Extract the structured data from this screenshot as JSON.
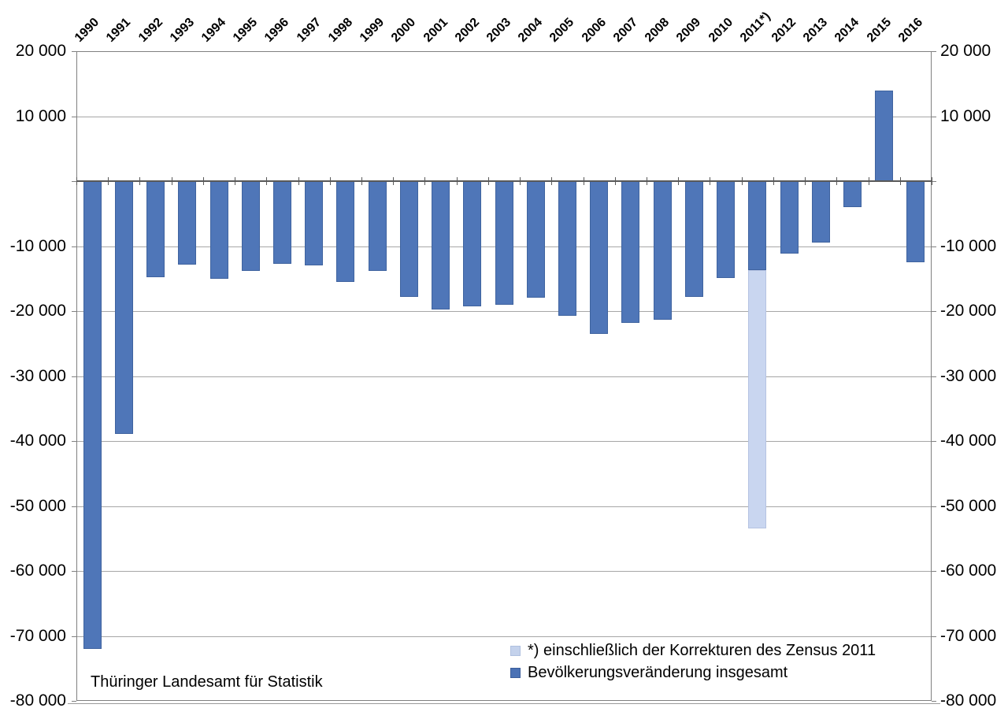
{
  "chart_data": {
    "type": "bar",
    "title": "",
    "categories": [
      "1990",
      "1991",
      "1992",
      "1993",
      "1994",
      "1995",
      "1996",
      "1997",
      "1998",
      "1999",
      "2000",
      "2001",
      "2002",
      "2003",
      "2004",
      "2005",
      "2006",
      "2007",
      "2008",
      "2009",
      "2010",
      "2011",
      "2012",
      "2013",
      "2014",
      "2015",
      "2016"
    ],
    "x_tick_labels": [
      "1990",
      "1991",
      "1992",
      "1993",
      "1994",
      "1995",
      "1996",
      "1997",
      "1998",
      "1999",
      "2000",
      "2001",
      "2002",
      "2003",
      "2004",
      "2005",
      "2006",
      "2007",
      "2008",
      "2009",
      "2010",
      "2011*)",
      "2012",
      "2013",
      "2014",
      "2015",
      "2016"
    ],
    "series": [
      {
        "name": "Bevölkerungsveränderung insgesamt",
        "color": "#4F76B8",
        "border_color": "#3F639F",
        "values": [
          -72000,
          -38900,
          -14800,
          -12900,
          -15000,
          -13800,
          -12700,
          -13000,
          -15500,
          -13800,
          -17800,
          -19700,
          -19300,
          -19000,
          -17900,
          -20700,
          -23500,
          -21800,
          -21300,
          -17800,
          -14900,
          -53400,
          -11100,
          -9500,
          -4000,
          14000,
          -12500
        ]
      }
    ],
    "census_segment": {
      "year": "2011",
      "note": "*) einschließlich der Korrekturen des Zensus 2011",
      "regular_change_to": -13700,
      "total_with_census_correction": -53400,
      "color": "#C9D6F0",
      "border_color": "#B5C3E2"
    },
    "ylim": [
      -80000,
      20000
    ],
    "y_tick_interval": 10000,
    "y_tick_values": [
      20000,
      10000,
      0,
      -10000,
      -20000,
      -30000,
      -40000,
      -50000,
      -60000,
      -70000,
      -80000
    ],
    "y_tick_labels": [
      "20 000",
      "10 000",
      "",
      "-10 000",
      "-20 000",
      "-30 000",
      "-40 000",
      "-50 000",
      "-60 000",
      "-70 000",
      "-80 000"
    ],
    "y_axis_mirrored": true,
    "grid": "horizontal",
    "gridline_color": "#A6A6A6",
    "zero_line_color": "#595959",
    "plot_border_color": "#808080",
    "legend_position": "bottom-right-inside"
  },
  "legend": {
    "items": [
      {
        "label": "*) einschließlich der Korrekturen des Zensus 2011",
        "color": "#C4D2EC",
        "border": "#AFC0DF"
      },
      {
        "label": "Bevölkerungsveränderung insgesamt",
        "color": "#4A71B5",
        "border": "#3C5E9B"
      }
    ]
  },
  "source": {
    "label": "Thüringer Landesamt für Statistik"
  }
}
